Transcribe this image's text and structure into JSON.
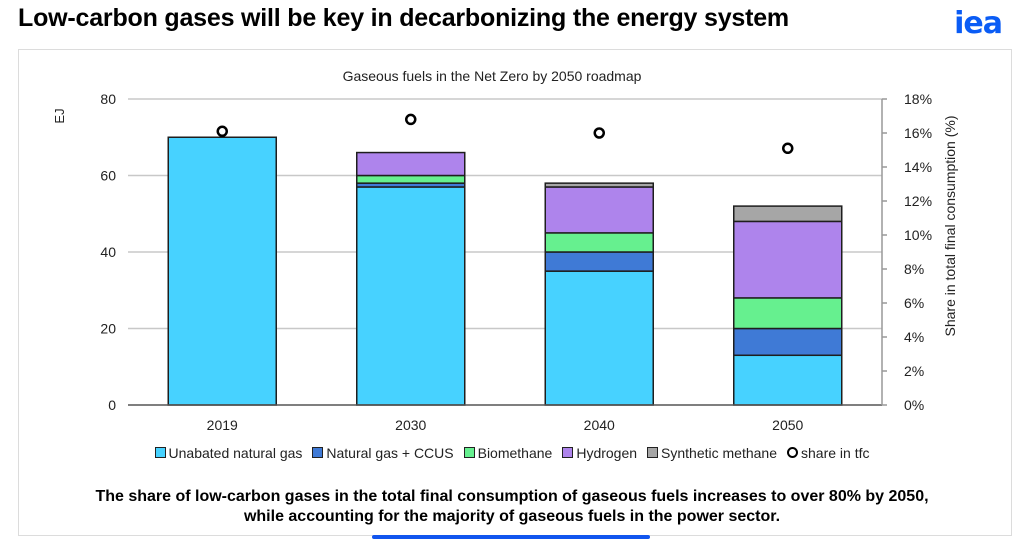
{
  "header": {
    "title": "Low-carbon gases will be key in decarbonizing the energy system",
    "logo_text": "iea"
  },
  "caption": {
    "line1": "The share of low-carbon gases in the total final consumption of gaseous fuels increases to over 80% by 2050,",
    "line2": "while accounting for the majority of gaseous fuels in the power sector."
  },
  "chart_data": {
    "type": "bar",
    "stacked": true,
    "title": "Gaseous fuels in the Net Zero by 2050 roadmap",
    "xlabel": "",
    "ylabel": "EJ",
    "y2label": "Share in total final consumption (%)",
    "ylim": [
      0,
      80
    ],
    "y2lim": [
      0,
      18
    ],
    "yticks": [
      "0",
      "20",
      "40",
      "60",
      "80"
    ],
    "y2ticks": [
      "0%",
      "2%",
      "4%",
      "6%",
      "8%",
      "10%",
      "12%",
      "14%",
      "16%",
      "18%"
    ],
    "grid": true,
    "legend_position": "bottom",
    "categories": [
      "2019",
      "2030",
      "2040",
      "2050"
    ],
    "series": [
      {
        "name": "Unabated natural gas",
        "color": "#47d2ff",
        "values": [
          70,
          57,
          35,
          13
        ]
      },
      {
        "name": "Natural gas + CCUS",
        "color": "#3f7ad6",
        "values": [
          0,
          1,
          5,
          7
        ]
      },
      {
        "name": "Biomethane",
        "color": "#66f08f",
        "values": [
          0,
          2,
          5,
          8
        ]
      },
      {
        "name": "Hydrogen",
        "color": "#ae84ec",
        "values": [
          0,
          6,
          12,
          20
        ]
      },
      {
        "name": "Synthetic methane",
        "color": "#a6a6a6",
        "values": [
          0,
          0,
          1,
          4
        ]
      }
    ],
    "line_series": {
      "name": "share in tfc",
      "axis": "right",
      "values": [
        16.1,
        16.8,
        16.0,
        15.1
      ]
    }
  }
}
